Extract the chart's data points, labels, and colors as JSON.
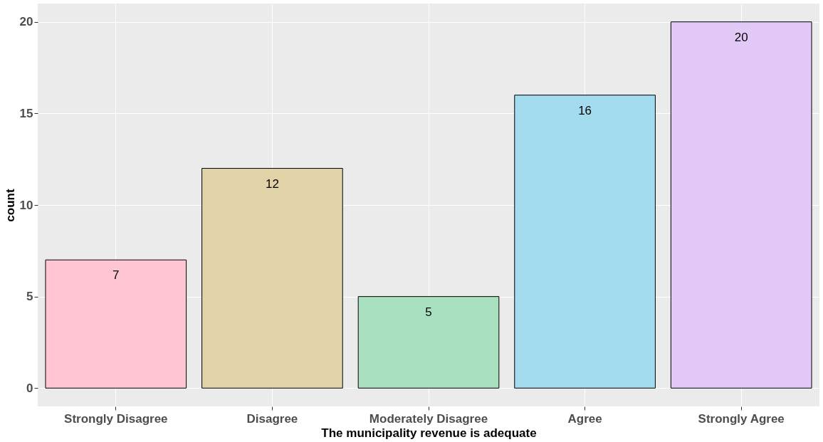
{
  "chart_data": {
    "type": "bar",
    "xlabel": "The municipality revenue is adequate",
    "ylabel": "count",
    "categories": [
      "Strongly Disagree",
      "Disagree",
      "Moderately Disagree",
      "Agree",
      "Strongly Agree"
    ],
    "values": [
      7,
      12,
      5,
      16,
      20
    ],
    "colors": [
      "#ffc5d3",
      "#e1d2a8",
      "#a8e0c0",
      "#a3dbef",
      "#e3c9f8"
    ],
    "ylim": [
      -1,
      21
    ],
    "yticks": [
      0,
      5,
      10,
      15,
      20
    ],
    "grid": true,
    "data_labels": true
  }
}
